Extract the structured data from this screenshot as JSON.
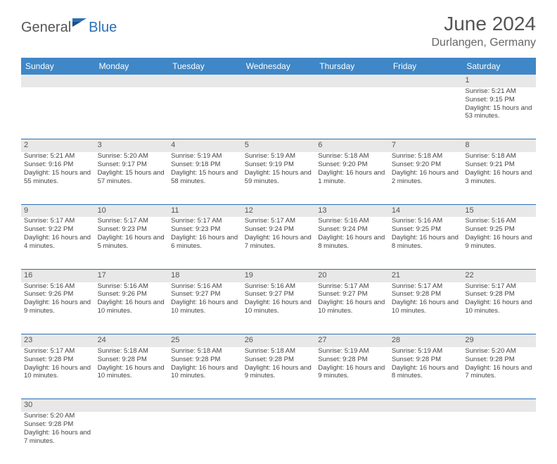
{
  "brand": {
    "part1": "General",
    "part2": "Blue"
  },
  "title": "June 2024",
  "location": "Durlangen, Germany",
  "header_bg": "#3f87c7",
  "border_color": "#2a6fb5",
  "daynum_bg": "#e8e8e8",
  "weekdays": [
    "Sunday",
    "Monday",
    "Tuesday",
    "Wednesday",
    "Thursday",
    "Friday",
    "Saturday"
  ],
  "weeks": [
    [
      null,
      null,
      null,
      null,
      null,
      null,
      {
        "n": "1",
        "r": "5:21 AM",
        "s": "9:15 PM",
        "d": "15 hours and 53 minutes."
      }
    ],
    [
      {
        "n": "2",
        "r": "5:21 AM",
        "s": "9:16 PM",
        "d": "15 hours and 55 minutes."
      },
      {
        "n": "3",
        "r": "5:20 AM",
        "s": "9:17 PM",
        "d": "15 hours and 57 minutes."
      },
      {
        "n": "4",
        "r": "5:19 AM",
        "s": "9:18 PM",
        "d": "15 hours and 58 minutes."
      },
      {
        "n": "5",
        "r": "5:19 AM",
        "s": "9:19 PM",
        "d": "15 hours and 59 minutes."
      },
      {
        "n": "6",
        "r": "5:18 AM",
        "s": "9:20 PM",
        "d": "16 hours and 1 minute."
      },
      {
        "n": "7",
        "r": "5:18 AM",
        "s": "9:20 PM",
        "d": "16 hours and 2 minutes."
      },
      {
        "n": "8",
        "r": "5:18 AM",
        "s": "9:21 PM",
        "d": "16 hours and 3 minutes."
      }
    ],
    [
      {
        "n": "9",
        "r": "5:17 AM",
        "s": "9:22 PM",
        "d": "16 hours and 4 minutes."
      },
      {
        "n": "10",
        "r": "5:17 AM",
        "s": "9:23 PM",
        "d": "16 hours and 5 minutes."
      },
      {
        "n": "11",
        "r": "5:17 AM",
        "s": "9:23 PM",
        "d": "16 hours and 6 minutes."
      },
      {
        "n": "12",
        "r": "5:17 AM",
        "s": "9:24 PM",
        "d": "16 hours and 7 minutes."
      },
      {
        "n": "13",
        "r": "5:16 AM",
        "s": "9:24 PM",
        "d": "16 hours and 8 minutes."
      },
      {
        "n": "14",
        "r": "5:16 AM",
        "s": "9:25 PM",
        "d": "16 hours and 8 minutes."
      },
      {
        "n": "15",
        "r": "5:16 AM",
        "s": "9:25 PM",
        "d": "16 hours and 9 minutes."
      }
    ],
    [
      {
        "n": "16",
        "r": "5:16 AM",
        "s": "9:26 PM",
        "d": "16 hours and 9 minutes."
      },
      {
        "n": "17",
        "r": "5:16 AM",
        "s": "9:26 PM",
        "d": "16 hours and 10 minutes."
      },
      {
        "n": "18",
        "r": "5:16 AM",
        "s": "9:27 PM",
        "d": "16 hours and 10 minutes."
      },
      {
        "n": "19",
        "r": "5:16 AM",
        "s": "9:27 PM",
        "d": "16 hours and 10 minutes."
      },
      {
        "n": "20",
        "r": "5:17 AM",
        "s": "9:27 PM",
        "d": "16 hours and 10 minutes."
      },
      {
        "n": "21",
        "r": "5:17 AM",
        "s": "9:28 PM",
        "d": "16 hours and 10 minutes."
      },
      {
        "n": "22",
        "r": "5:17 AM",
        "s": "9:28 PM",
        "d": "16 hours and 10 minutes."
      }
    ],
    [
      {
        "n": "23",
        "r": "5:17 AM",
        "s": "9:28 PM",
        "d": "16 hours and 10 minutes."
      },
      {
        "n": "24",
        "r": "5:18 AM",
        "s": "9:28 PM",
        "d": "16 hours and 10 minutes."
      },
      {
        "n": "25",
        "r": "5:18 AM",
        "s": "9:28 PM",
        "d": "16 hours and 10 minutes."
      },
      {
        "n": "26",
        "r": "5:18 AM",
        "s": "9:28 PM",
        "d": "16 hours and 9 minutes."
      },
      {
        "n": "27",
        "r": "5:19 AM",
        "s": "9:28 PM",
        "d": "16 hours and 9 minutes."
      },
      {
        "n": "28",
        "r": "5:19 AM",
        "s": "9:28 PM",
        "d": "16 hours and 8 minutes."
      },
      {
        "n": "29",
        "r": "5:20 AM",
        "s": "9:28 PM",
        "d": "16 hours and 7 minutes."
      }
    ],
    [
      {
        "n": "30",
        "r": "5:20 AM",
        "s": "9:28 PM",
        "d": "16 hours and 7 minutes."
      },
      null,
      null,
      null,
      null,
      null,
      null
    ]
  ],
  "labels": {
    "sunrise": "Sunrise:",
    "sunset": "Sunset:",
    "daylight": "Daylight:"
  }
}
